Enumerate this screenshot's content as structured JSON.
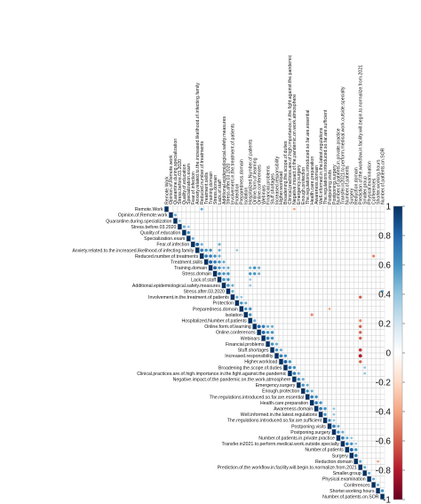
{
  "chart_data": {
    "type": "heatmap",
    "variables": [
      "Remote.Work",
      "Opinion.of.Remote.work",
      "Quarantine.during.specialization",
      "Stress.before.03.2020",
      "Quality.of.education",
      "Specialization.exam",
      "Fear.of.infection",
      "Anxiety.related.to.the.increased.likelihood.of.infecting.family",
      "Reduced.number.of.treatments",
      "Treatment.skills",
      "Training.domain",
      "Stress.domain",
      "Lack.of.staff",
      "Additional.epidemiological.safety.measures",
      "Stress.after.03.2020",
      "Involvement.in.the.treatment.of.patients",
      "Protection",
      "Preparedness.domain",
      "Isolation",
      "Hospitalized.Number.of.patients",
      "Online.form.of.learning",
      "Online.conferences",
      "Webinars",
      "Financial.problems",
      "Stuff.shortages",
      "Increased.responsibility",
      "Higher.workload",
      "Broadening.the.scope.of.duties",
      "Clinical.practices.are.of.high.importance.in.the.fight.against.the.pandemic",
      "Negative.impact.of.the.pandemic.on.the.work.atmosphere",
      "Emergency.surgery",
      "Enough.protection",
      "The.regulations.introduced.so.far.are.essential",
      "Health.care.preparation",
      "Awareness.domain",
      "Well.informed.in.the.latest.regulations",
      "The.regulations.introduced.so.far.are.sufficient",
      "Postponing.visits",
      "Postponing.surgery",
      "Number.of.patients.in.private.practice",
      "Transfer.in2021.to.perform.medical.work.outside.specialty",
      "Number.of.patients",
      "Surgery",
      "Reduction.domain",
      "Prediction.of.the.workflow.in.facility.will.begin.to.normalize.from.2021",
      "Smaller.group",
      "Physical.examination",
      "Conferences",
      "Shorter.working.hours",
      "Number.of.patients.on.SOR"
    ],
    "column_labels": [
      "Remote.Work",
      "Opinion.of.Remote.work",
      "Quarantine.during.specialization",
      "Stress.before.03.2020",
      "Quality.of.education",
      "Specialization.exam",
      "Fear.of.infection",
      "Anxiety.related.to.the.increased.likelihood.of.infecting.family",
      "Reduced.number.of.treatments",
      "Treatment.skills",
      "Training.domain",
      "Stress.domain",
      "Lack.of.staff",
      "Additional.epidemiological.safety.measures",
      "Stress.after.03.2020",
      "Involvement.in.the.treatment.of.patients",
      "Protection",
      "Preparedness.domain",
      "Isolation",
      "Hospitalized.Number.of.patients",
      "Online.form.of.learning",
      "Online.conferences",
      "Webinars",
      "Financial.problems",
      "Stuff.shortages",
      "Increased.responsibility",
      "Higher.workload",
      "Broadening.the.scope.of.duties",
      "Clinical.practices.are.of.high.importance.in.the.fight.against.the.pandemic",
      "Negative.impact.of.the.pandemic.on.work.atmosphere",
      "Emergency.surgery",
      "Enough.protection",
      "The.regulations.introduced.so.far.are.essential",
      "Health.care.preparation",
      "Awareness.domain",
      "Well.informed.in.the.latest.regulations",
      "The.regulations.introduced.so.far.are.sufficient",
      "Postponing.visits",
      "Postponing.surgery",
      "Number.of.patients.in.private.practice",
      "Transfer.in2021.to.perform.medical.work.outside.specialty",
      "Number.of.patients",
      "Surgery",
      "Reduction.domain",
      "Prediction.of.the.workflow.in.facility.will.begin.to.normalize.from.2021",
      "Smaller.group",
      "Physical.examination",
      "Conferences",
      "Shorter.working.hours",
      "Number.of.patients.on.SOR"
    ],
    "cells": [
      [
        0,
        8,
        0.5
      ],
      [
        0,
        29,
        -0.4
      ],
      [
        1,
        2,
        0.5
      ],
      [
        2,
        3,
        0.4
      ],
      [
        3,
        4,
        0.5
      ],
      [
        3,
        5,
        0.4
      ],
      [
        4,
        5,
        0.6
      ],
      [
        5,
        6,
        0.5
      ],
      [
        6,
        7,
        0.8
      ],
      [
        6,
        8,
        0.5
      ],
      [
        6,
        12,
        0.5
      ],
      [
        7,
        8,
        0.7
      ],
      [
        7,
        9,
        0.6
      ],
      [
        7,
        10,
        0.6
      ],
      [
        7,
        12,
        0.5
      ],
      [
        7,
        16,
        0.4
      ],
      [
        8,
        9,
        0.7
      ],
      [
        8,
        10,
        0.7
      ],
      [
        8,
        11,
        0.6
      ],
      [
        8,
        12,
        0.5
      ],
      [
        8,
        47,
        -0.5
      ],
      [
        9,
        10,
        0.8
      ],
      [
        9,
        11,
        0.7
      ],
      [
        9,
        12,
        0.6
      ],
      [
        9,
        13,
        0.5
      ],
      [
        10,
        11,
        0.8
      ],
      [
        10,
        12,
        0.6
      ],
      [
        10,
        13,
        0.5
      ],
      [
        10,
        14,
        0.5
      ],
      [
        10,
        19,
        0.5
      ],
      [
        10,
        20,
        0.6
      ],
      [
        10,
        21,
        0.5
      ],
      [
        11,
        12,
        0.7
      ],
      [
        11,
        13,
        0.6
      ],
      [
        11,
        14,
        0.6
      ],
      [
        11,
        19,
        0.6
      ],
      [
        11,
        20,
        0.6
      ],
      [
        11,
        21,
        0.5
      ],
      [
        12,
        13,
        0.6
      ],
      [
        12,
        14,
        0.6
      ],
      [
        12,
        19,
        0.4
      ],
      [
        13,
        14,
        0.6
      ],
      [
        13,
        15,
        0.5
      ],
      [
        13,
        19,
        0.4
      ],
      [
        14,
        15,
        0.5
      ],
      [
        14,
        49,
        0.5
      ],
      [
        15,
        16,
        0.5
      ],
      [
        15,
        17,
        0.4
      ],
      [
        15,
        44,
        -0.6
      ],
      [
        16,
        17,
        0.6
      ],
      [
        16,
        18,
        0.5
      ],
      [
        17,
        18,
        0.6
      ],
      [
        17,
        19,
        0.6
      ],
      [
        17,
        37,
        -0.4
      ],
      [
        18,
        19,
        0.6
      ],
      [
        18,
        33,
        -0.5
      ],
      [
        19,
        20,
        0.5
      ],
      [
        19,
        44,
        -0.5
      ],
      [
        20,
        21,
        0.8
      ],
      [
        20,
        22,
        0.7
      ],
      [
        20,
        23,
        0.5
      ],
      [
        20,
        24,
        0.5
      ],
      [
        20,
        44,
        -0.6
      ],
      [
        21,
        22,
        0.8
      ],
      [
        21,
        23,
        0.6
      ],
      [
        21,
        24,
        0.6
      ],
      [
        21,
        44,
        -0.6
      ],
      [
        22,
        23,
        0.7
      ],
      [
        22,
        24,
        0.6
      ],
      [
        22,
        44,
        -0.6
      ],
      [
        23,
        24,
        0.6
      ],
      [
        23,
        25,
        0.5
      ],
      [
        24,
        25,
        0.6
      ],
      [
        24,
        26,
        0.5
      ],
      [
        24,
        44,
        -0.7
      ],
      [
        25,
        26,
        0.7
      ],
      [
        25,
        27,
        0.6
      ],
      [
        25,
        44,
        -0.8
      ],
      [
        26,
        27,
        0.8
      ],
      [
        26,
        28,
        0.6
      ],
      [
        26,
        44,
        -0.6
      ],
      [
        27,
        28,
        0.7
      ],
      [
        27,
        29,
        0.6
      ],
      [
        27,
        45,
        0.4
      ],
      [
        28,
        29,
        0.7
      ],
      [
        28,
        30,
        0.5
      ],
      [
        28,
        45,
        0.4
      ],
      [
        29,
        30,
        0.6
      ],
      [
        29,
        31,
        0.5
      ],
      [
        30,
        31,
        0.6
      ],
      [
        30,
        32,
        0.5
      ],
      [
        31,
        32,
        0.6
      ],
      [
        31,
        33,
        0.5
      ],
      [
        32,
        33,
        0.7
      ],
      [
        32,
        34,
        0.6
      ],
      [
        33,
        34,
        0.7
      ],
      [
        33,
        35,
        0.6
      ],
      [
        34,
        35,
        0.7
      ],
      [
        34,
        36,
        0.6
      ],
      [
        34,
        38,
        0.4
      ],
      [
        35,
        36,
        0.6
      ],
      [
        35,
        38,
        0.4
      ],
      [
        36,
        37,
        0.6
      ],
      [
        36,
        38,
        0.4
      ],
      [
        37,
        38,
        0.7
      ],
      [
        37,
        39,
        0.5
      ],
      [
        38,
        39,
        0.6
      ],
      [
        38,
        40,
        0.5
      ],
      [
        39,
        40,
        0.7
      ],
      [
        39,
        41,
        0.5
      ],
      [
        39,
        42,
        0.4
      ],
      [
        40,
        41,
        0.7
      ],
      [
        40,
        42,
        0.6
      ],
      [
        40,
        43,
        0.4
      ],
      [
        41,
        42,
        0.8
      ],
      [
        41,
        43,
        0.6
      ],
      [
        42,
        43,
        0.7
      ],
      [
        43,
        44,
        0.5
      ],
      [
        43,
        48,
        -0.4
      ],
      [
        44,
        45,
        0.5
      ],
      [
        45,
        46,
        0.5
      ],
      [
        46,
        47,
        0.5
      ],
      [
        47,
        48,
        0.5
      ],
      [
        48,
        49,
        0.6
      ]
    ],
    "color_scale": {
      "min": -1,
      "max": 1,
      "ticks": [
        "1",
        "0.8",
        "0.6",
        "0.4",
        "0.2",
        "0",
        "-0.2",
        "-0.4",
        "-0.6",
        "-0.8",
        "-1"
      ],
      "negative_color": "#67001f",
      "mid_color": "#ffffff",
      "positive_color": "#053061"
    },
    "upper_triangle": true,
    "grid": true
  }
}
